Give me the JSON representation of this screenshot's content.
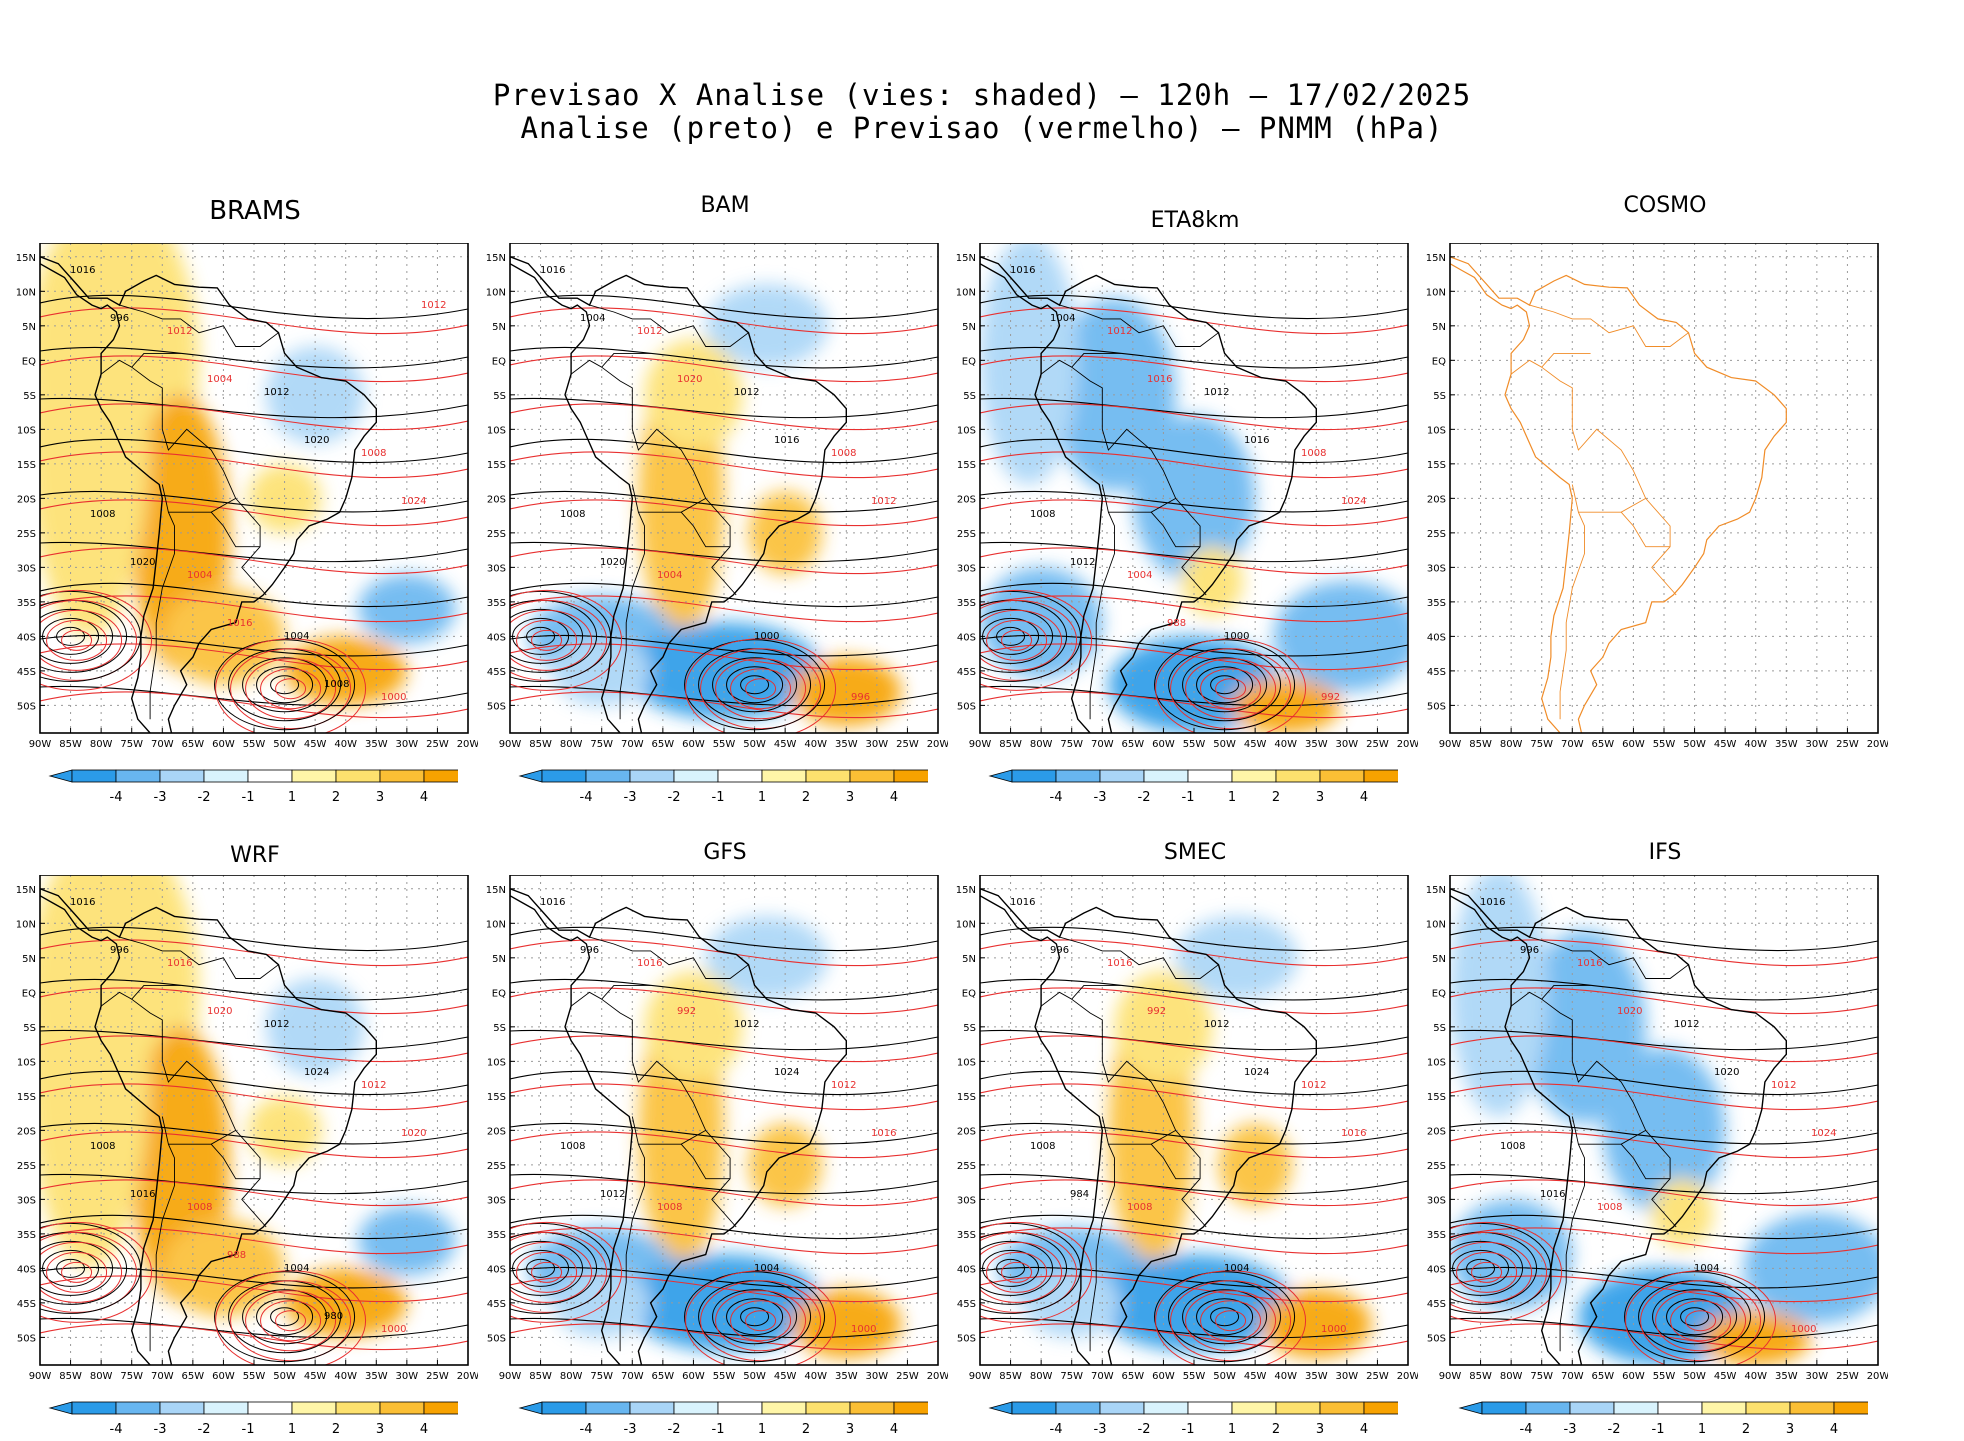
{
  "header": {
    "line1": "Previsao X Analise (vies: shaded) – 120h – 17/02/2025",
    "line2": "Analise (preto) e Previsao (vermelho) – PNMM (hPa)"
  },
  "lat_labels": [
    "15N",
    "10N",
    "5N",
    "EQ",
    "5S",
    "10S",
    "15S",
    "20S",
    "25S",
    "30S",
    "35S",
    "40S",
    "45S",
    "50S"
  ],
  "lon_labels": [
    "90W",
    "85W",
    "80W",
    "75W",
    "70W",
    "65W",
    "60W",
    "55W",
    "50W",
    "45W",
    "40W",
    "35W",
    "30W",
    "25W",
    "20W"
  ],
  "colorbar": {
    "ticks": [
      "-4",
      "-3",
      "-2",
      "-1",
      "1",
      "2",
      "3",
      "4"
    ],
    "colors": [
      "#2b9be8",
      "#68b6f0",
      "#a9d5f7",
      "#d9f3fd",
      "#ffffff",
      "#fff6a8",
      "#fde16e",
      "#fbbf35",
      "#f7a200"
    ]
  },
  "colors": {
    "analysis": "#000000",
    "forecast": "#e83030",
    "cosmo_outline": "#f08c28"
  },
  "panels": [
    {
      "id": "brams",
      "title": "BRAMS",
      "has_data": true,
      "bias": "warm",
      "labels": [
        "1016",
        "1012",
        "1012",
        "1008",
        "1008",
        "1004",
        "1004",
        "1000",
        "996",
        "1004",
        "1020",
        "1024",
        "1020",
        "1016",
        "1008",
        "1012"
      ]
    },
    {
      "id": "bam",
      "title": "BAM",
      "has_data": true,
      "bias": "mixed",
      "labels": [
        "1016",
        "1012",
        "1012",
        "1008",
        "1008",
        "1004",
        "1000",
        "996",
        "1004",
        "1020",
        "1016",
        "1012",
        "1020"
      ]
    },
    {
      "id": "eta8km",
      "title": "ETA8km",
      "has_data": true,
      "bias": "cold",
      "labels": [
        "1016",
        "1012",
        "1012",
        "1008",
        "1008",
        "1004",
        "1000",
        "992",
        "1004",
        "1016",
        "1016",
        "1024",
        "1012",
        "988"
      ]
    },
    {
      "id": "cosmo",
      "title": "COSMO",
      "has_data": false,
      "bias": "none",
      "labels": []
    },
    {
      "id": "wrf",
      "title": "WRF",
      "has_data": true,
      "bias": "warm",
      "labels": [
        "1016",
        "1016",
        "1012",
        "1012",
        "1008",
        "1008",
        "1004",
        "1000",
        "996",
        "1020",
        "1024",
        "1020",
        "1016",
        "988",
        "980"
      ]
    },
    {
      "id": "gfs",
      "title": "GFS",
      "has_data": true,
      "bias": "mixed",
      "labels": [
        "1016",
        "1016",
        "1012",
        "1012",
        "1008",
        "1008",
        "1004",
        "1000",
        "996",
        "992",
        "1024",
        "1016",
        "1012"
      ]
    },
    {
      "id": "smec",
      "title": "SMEC",
      "has_data": true,
      "bias": "mixed",
      "labels": [
        "1016",
        "1016",
        "1012",
        "1012",
        "1008",
        "1008",
        "1004",
        "1000",
        "996",
        "992",
        "1024",
        "1016",
        "984"
      ]
    },
    {
      "id": "ifs",
      "title": "IFS",
      "has_data": true,
      "bias": "cold",
      "labels": [
        "1016",
        "1016",
        "1012",
        "1012",
        "1008",
        "1008",
        "1004",
        "1000",
        "996",
        "1020",
        "1020",
        "1024",
        "1016"
      ]
    }
  ]
}
